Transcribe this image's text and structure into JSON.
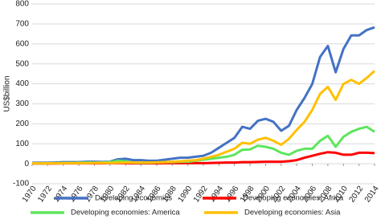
{
  "chart_data": {
    "type": "line",
    "y_label": "US$billion",
    "x": [
      1970,
      1971,
      1972,
      1973,
      1974,
      1975,
      1976,
      1977,
      1978,
      1979,
      1980,
      1981,
      1982,
      1983,
      1984,
      1985,
      1986,
      1987,
      1988,
      1989,
      1990,
      1991,
      1992,
      1993,
      1994,
      1995,
      1996,
      1997,
      1998,
      1999,
      2000,
      2001,
      2002,
      2003,
      2004,
      2005,
      2006,
      2007,
      2008,
      2009,
      2010,
      2011,
      2012,
      2013,
      2014
    ],
    "xlim": [
      1970,
      2014
    ],
    "xticks": [
      1970,
      1972,
      1974,
      1976,
      1978,
      1980,
      1982,
      1984,
      1986,
      1988,
      1990,
      1992,
      1994,
      1996,
      1998,
      2000,
      2002,
      2004,
      2006,
      2008,
      2010,
      2012,
      2014
    ],
    "ylim": [
      -100,
      800
    ],
    "yticks": [
      -100,
      0,
      100,
      200,
      300,
      400,
      500,
      600,
      700,
      800
    ],
    "grid": true,
    "series": [
      {
        "name": "Developing economies",
        "color": "#4472c4",
        "values": [
          5,
          5,
          5,
          6,
          8,
          8,
          8,
          10,
          10,
          9,
          10,
          22,
          25,
          18,
          18,
          15,
          15,
          20,
          25,
          30,
          30,
          35,
          40,
          55,
          80,
          105,
          130,
          185,
          175,
          215,
          225,
          210,
          165,
          190,
          270,
          330,
          400,
          535,
          590,
          458,
          575,
          643,
          643,
          670,
          683
        ]
      },
      {
        "name": "Developing economies: Africa",
        "color": "#ff0000",
        "values": [
          1,
          1,
          1,
          1,
          2,
          2,
          2,
          2,
          2,
          2,
          3,
          3,
          3,
          2,
          2,
          2,
          2,
          3,
          3,
          3,
          3,
          3,
          3,
          4,
          5,
          6,
          6,
          8,
          8,
          9,
          10,
          10,
          10,
          13,
          18,
          30,
          40,
          50,
          58,
          55,
          45,
          45,
          55,
          55,
          53
        ]
      },
      {
        "name": "Developing economies: America",
        "color": "#5ce65c",
        "values": [
          2,
          2,
          2,
          3,
          4,
          4,
          5,
          6,
          6,
          6,
          8,
          15,
          12,
          5,
          5,
          5,
          6,
          8,
          8,
          10,
          10,
          15,
          20,
          25,
          30,
          35,
          45,
          70,
          72,
          90,
          85,
          75,
          55,
          45,
          65,
          75,
          75,
          115,
          140,
          85,
          135,
          160,
          175,
          185,
          160
        ]
      },
      {
        "name": "Developing economies: Asia",
        "color": "#ffc000",
        "values": [
          2,
          2,
          2,
          2,
          3,
          3,
          3,
          3,
          4,
          4,
          4,
          5,
          6,
          6,
          6,
          6,
          7,
          8,
          10,
          12,
          15,
          18,
          25,
          35,
          45,
          60,
          75,
          105,
          100,
          120,
          130,
          115,
          95,
          125,
          170,
          210,
          270,
          350,
          385,
          320,
          400,
          420,
          400,
          430,
          465
        ]
      }
    ]
  }
}
